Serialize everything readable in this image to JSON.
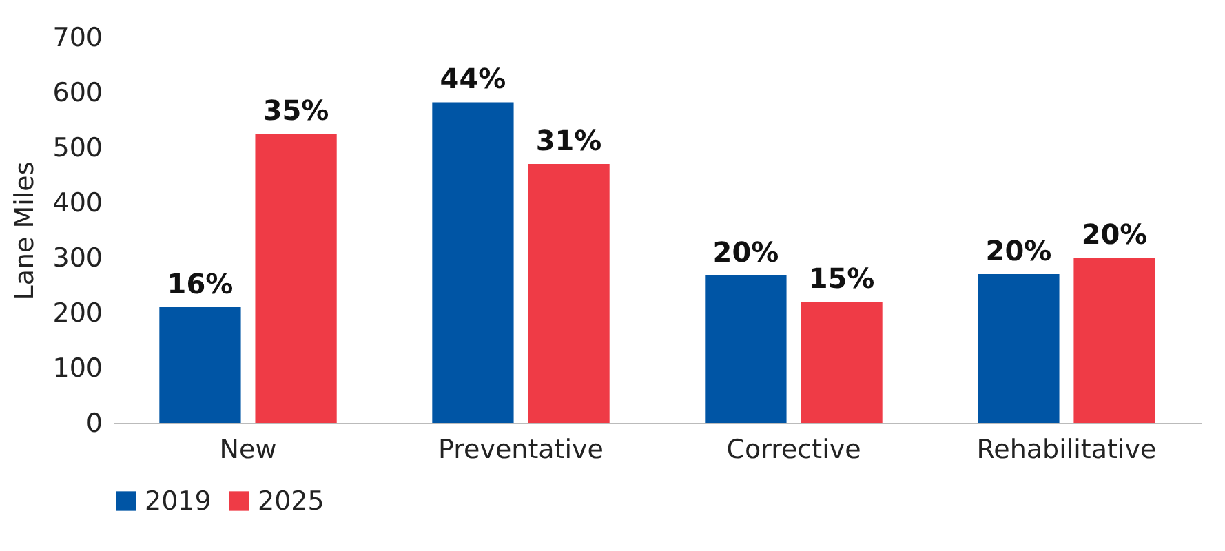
{
  "chart_data": {
    "type": "bar",
    "ylabel": "Lane Miles",
    "categories": [
      "New",
      "Preventative",
      "Corrective",
      "Rehabilitative"
    ],
    "series": [
      {
        "name": "2019",
        "color": "#0055a5",
        "values": [
          210,
          582,
          268,
          270
        ]
      },
      {
        "name": "2025",
        "color": "#ef3b46",
        "values": [
          525,
          470,
          220,
          300
        ]
      }
    ],
    "annotations": [
      "16%",
      "44%",
      "20%",
      "20%",
      "35%",
      "31%",
      "15%",
      "20%"
    ],
    "ylim": [
      0,
      700
    ],
    "yticks": [
      0,
      100,
      200,
      300,
      400,
      500,
      600,
      700
    ],
    "grid": false,
    "legend": "bottom"
  }
}
